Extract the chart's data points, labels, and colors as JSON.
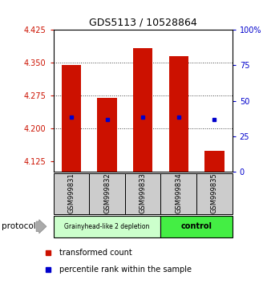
{
  "title": "GDS5113 / 10528864",
  "samples": [
    "GSM999831",
    "GSM999832",
    "GSM999833",
    "GSM999834",
    "GSM999835"
  ],
  "ylim_left": [
    4.1,
    4.425
  ],
  "ylim_right": [
    0,
    100
  ],
  "yticks_left": [
    4.125,
    4.2,
    4.275,
    4.35,
    4.425
  ],
  "yticks_right": [
    0,
    25,
    50,
    75,
    100
  ],
  "bar_bottoms": [
    4.1,
    4.1,
    4.1,
    4.1,
    4.1
  ],
  "bar_tops": [
    4.345,
    4.27,
    4.383,
    4.365,
    4.148
  ],
  "blue_dot_positions": [
    4.225,
    4.22,
    4.225,
    4.225,
    4.22
  ],
  "bar_color": "#cc1100",
  "blue_color": "#0000cc",
  "grid_color": "#444444",
  "left_tick_color": "#cc1100",
  "right_tick_color": "#0000cc",
  "group1_label": "Grainyhead-like 2 depletion",
  "group2_label": "control",
  "group1_color": "#ccffcc",
  "group2_color": "#44ee44",
  "group1_samples": [
    0,
    1,
    2
  ],
  "group2_samples": [
    3,
    4
  ],
  "protocol_label": "protocol",
  "legend_red_label": "transformed count",
  "legend_blue_label": "percentile rank within the sample",
  "bar_width": 0.55,
  "figsize": [
    3.33,
    3.54
  ],
  "dpi": 100
}
